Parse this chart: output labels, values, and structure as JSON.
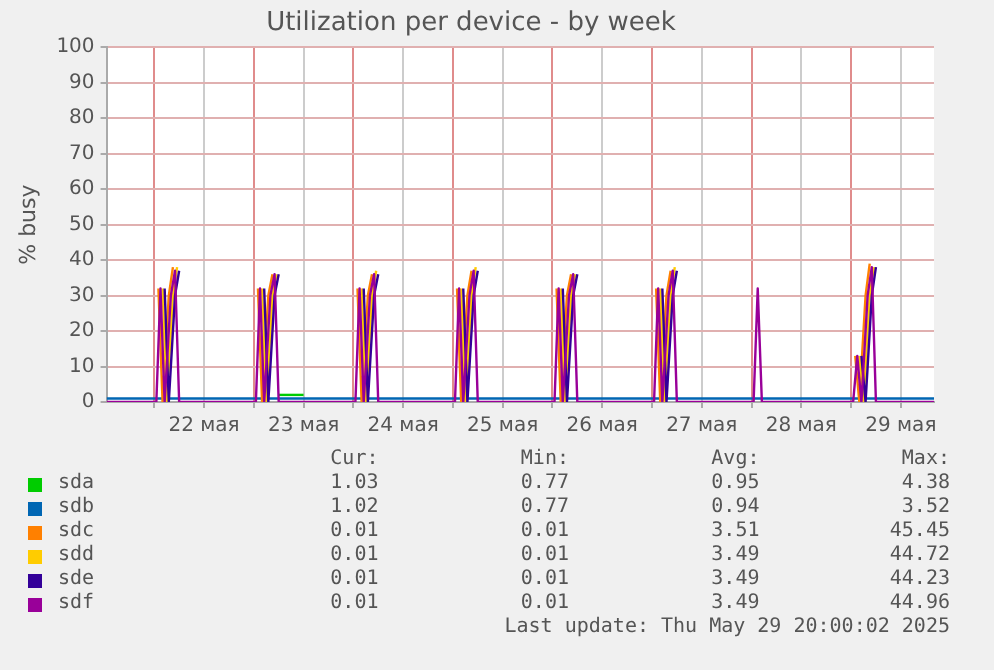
{
  "chart_data": {
    "type": "line",
    "title": "Utilization per device - by week",
    "ylabel": "% busy",
    "x": [
      "2025-05-21T12:30",
      "2025-05-22T00:30",
      "2025-05-22T01:30",
      "2025-05-22T02:30",
      "2025-05-22T04:00",
      "2025-05-22T05:00",
      "2025-05-22T06:00",
      "2025-05-23T00:30",
      "2025-05-23T01:30",
      "2025-05-23T02:30",
      "2025-05-23T04:00",
      "2025-05-23T05:00",
      "2025-05-23T06:00",
      "2025-05-24T00:30",
      "2025-05-24T01:30",
      "2025-05-24T02:30",
      "2025-05-24T04:00",
      "2025-05-24T05:00",
      "2025-05-24T06:00",
      "2025-05-25T00:30",
      "2025-05-25T01:30",
      "2025-05-25T02:30",
      "2025-05-25T04:00",
      "2025-05-25T05:00",
      "2025-05-25T06:00",
      "2025-05-26T00:30",
      "2025-05-26T01:30",
      "2025-05-26T02:30",
      "2025-05-26T04:00",
      "2025-05-26T05:00",
      "2025-05-26T06:00",
      "2025-05-27T00:30",
      "2025-05-27T01:30",
      "2025-05-27T02:30",
      "2025-05-27T04:00",
      "2025-05-27T05:00",
      "2025-05-27T06:00",
      "2025-05-28T00:30",
      "2025-05-28T01:30",
      "2025-05-28T02:30",
      "2025-05-28T04:00",
      "2025-05-28T05:00",
      "2025-05-28T06:00",
      "2025-05-29T00:30",
      "2025-05-29T01:30",
      "2025-05-29T02:30",
      "2025-05-29T04:00",
      "2025-05-29T05:00",
      "2025-05-29T06:00",
      "2025-05-29T20:00"
    ],
    "series": [
      {
        "name": "sda",
        "color": "#00cc00",
        "x": [
          "2025-05-23T06:00",
          "2025-05-23T08:00",
          "2025-05-23T10:00",
          "2025-05-23T12:00"
        ],
        "values": [
          2,
          2,
          2,
          2
        ]
      },
      {
        "name": "sdb",
        "color": "#0066b3",
        "values": [
          1,
          1,
          1,
          1,
          1,
          1,
          1,
          1,
          1,
          1,
          1,
          1,
          1,
          1,
          1,
          1,
          1,
          1,
          1,
          1,
          1,
          1,
          1,
          1,
          1,
          1,
          1,
          1,
          1,
          1,
          1,
          1,
          1,
          1,
          1,
          1,
          1,
          1,
          1,
          1,
          1,
          1,
          1,
          1,
          1,
          1,
          1,
          1,
          1,
          1
        ]
      },
      {
        "name": "sdc",
        "color": "#ff8000",
        "x": [
          "2025-05-22T01:00",
          "2025-05-22T02:00",
          "2025-05-22T03:30",
          "2025-05-22T04:30",
          "2025-05-22T12:00",
          "2025-05-23T01:00",
          "2025-05-23T02:00",
          "2025-05-23T03:30",
          "2025-05-23T04:30",
          "2025-05-23T12:00",
          "2025-05-24T01:00",
          "2025-05-24T02:00",
          "2025-05-24T03:30",
          "2025-05-24T04:30",
          "2025-05-24T12:00",
          "2025-05-25T01:00",
          "2025-05-25T02:00",
          "2025-05-25T03:30",
          "2025-05-25T04:30",
          "2025-05-25T12:00",
          "2025-05-26T01:00",
          "2025-05-26T02:00",
          "2025-05-26T03:30",
          "2025-05-26T04:30",
          "2025-05-26T12:00",
          "2025-05-27T01:00",
          "2025-05-27T02:00",
          "2025-05-27T03:30",
          "2025-05-27T04:30",
          "2025-05-27T12:00",
          "2025-05-29T01:00",
          "2025-05-29T02:00",
          "2025-05-29T03:30",
          "2025-05-29T04:30"
        ],
        "values": [
          32,
          0,
          30,
          38,
          null,
          32,
          0,
          30,
          36,
          null,
          32,
          0,
          30,
          36,
          null,
          32,
          0,
          30,
          37,
          null,
          32,
          0,
          30,
          36,
          null,
          32,
          0,
          30,
          37,
          null,
          13,
          0,
          30,
          39
        ]
      },
      {
        "name": "sdd",
        "color": "#ffcc00",
        "x": [
          "2025-05-22T02:00",
          "2025-05-22T03:00",
          "2025-05-22T04:30",
          "2025-05-22T05:30",
          "2025-05-22T12:00",
          "2025-05-23T02:00",
          "2025-05-23T03:00",
          "2025-05-23T04:30",
          "2025-05-23T05:30",
          "2025-05-23T12:00",
          "2025-05-24T02:00",
          "2025-05-24T03:00",
          "2025-05-24T04:30",
          "2025-05-24T05:30",
          "2025-05-24T12:00",
          "2025-05-25T02:00",
          "2025-05-25T03:00",
          "2025-05-25T04:30",
          "2025-05-25T05:30",
          "2025-05-25T12:00",
          "2025-05-26T02:00",
          "2025-05-26T03:00",
          "2025-05-26T04:30",
          "2025-05-26T05:30",
          "2025-05-26T12:00",
          "2025-05-27T02:00",
          "2025-05-27T03:00",
          "2025-05-27T04:30",
          "2025-05-27T05:30",
          "2025-05-27T12:00",
          "2025-05-29T02:00",
          "2025-05-29T03:00",
          "2025-05-29T04:30",
          "2025-05-29T05:30"
        ],
        "values": [
          32,
          0,
          30,
          38,
          null,
          32,
          0,
          30,
          36,
          null,
          32,
          0,
          30,
          37,
          null,
          32,
          0,
          30,
          38,
          null,
          32,
          0,
          30,
          36,
          null,
          32,
          0,
          30,
          38,
          null,
          13,
          0,
          30,
          38
        ]
      },
      {
        "name": "sde",
        "color": "#330099",
        "x": [
          "2025-05-22T02:30",
          "2025-05-22T03:30",
          "2025-05-22T05:00",
          "2025-05-22T06:00",
          "2025-05-22T12:00",
          "2025-05-23T02:30",
          "2025-05-23T03:30",
          "2025-05-23T05:00",
          "2025-05-23T06:00",
          "2025-05-23T12:00",
          "2025-05-24T02:30",
          "2025-05-24T03:30",
          "2025-05-24T05:00",
          "2025-05-24T06:00",
          "2025-05-24T12:00",
          "2025-05-25T02:30",
          "2025-05-25T03:30",
          "2025-05-25T05:00",
          "2025-05-25T06:00",
          "2025-05-25T12:00",
          "2025-05-26T02:30",
          "2025-05-26T03:30",
          "2025-05-26T05:00",
          "2025-05-26T06:00",
          "2025-05-26T12:00",
          "2025-05-27T02:30",
          "2025-05-27T03:30",
          "2025-05-27T05:00",
          "2025-05-27T06:00",
          "2025-05-27T12:00",
          "2025-05-29T02:30",
          "2025-05-29T03:30",
          "2025-05-29T05:00",
          "2025-05-29T06:00"
        ],
        "values": [
          32,
          0,
          30,
          37,
          null,
          32,
          0,
          30,
          36,
          null,
          32,
          0,
          30,
          36,
          null,
          32,
          0,
          30,
          37,
          null,
          32,
          0,
          30,
          36,
          null,
          32,
          0,
          30,
          37,
          null,
          13,
          0,
          30,
          38
        ]
      },
      {
        "name": "sdf",
        "color": "#990099",
        "values": [
          0,
          0,
          32,
          0,
          30,
          37,
          0,
          0,
          32,
          0,
          30,
          36,
          0,
          0,
          32,
          0,
          30,
          36,
          0,
          0,
          32,
          0,
          30,
          37,
          0,
          0,
          32,
          0,
          30,
          36,
          0,
          0,
          32,
          0,
          30,
          37,
          0,
          0,
          32,
          0,
          0,
          0,
          0,
          0,
          13,
          0,
          30,
          38,
          0,
          0
        ]
      }
    ],
    "xlim": [
      "2025-05-21T12:30",
      "2025-05-29T20:00"
    ],
    "xticks": [
      {
        "value": "2025-05-22T00:00",
        "label": null
      },
      {
        "value": "2025-05-22T12:00",
        "label": "22 мая"
      },
      {
        "value": "2025-05-23T00:00",
        "label": null
      },
      {
        "value": "2025-05-23T12:00",
        "label": "23 мая"
      },
      {
        "value": "2025-05-24T00:00",
        "label": null
      },
      {
        "value": "2025-05-24T12:00",
        "label": "24 мая"
      },
      {
        "value": "2025-05-25T00:00",
        "label": null
      },
      {
        "value": "2025-05-25T12:00",
        "label": "25 мая"
      },
      {
        "value": "2025-05-26T00:00",
        "label": null
      },
      {
        "value": "2025-05-26T12:00",
        "label": "26 мая"
      },
      {
        "value": "2025-05-27T00:00",
        "label": null
      },
      {
        "value": "2025-05-27T12:00",
        "label": "27 мая"
      },
      {
        "value": "2025-05-28T00:00",
        "label": null
      },
      {
        "value": "2025-05-28T12:00",
        "label": "28 мая"
      },
      {
        "value": "2025-05-29T00:00",
        "label": null
      },
      {
        "value": "2025-05-29T12:00",
        "label": "29 мая"
      }
    ],
    "ylim": [
      0,
      100
    ],
    "yticks": [
      0,
      10,
      20,
      30,
      40,
      50,
      60,
      70,
      80,
      90,
      100
    ],
    "grid": true,
    "legend": "bottom",
    "marker": "none",
    "line_style": "solid",
    "annotations": [
      "Cur:",
      "Min:",
      "Avg:",
      "Max:",
      "1.03",
      "0.77",
      "0.95",
      "4.38",
      "1.02",
      "0.77",
      "0.94",
      "3.52",
      "0.01",
      "0.01",
      "3.51",
      "45.45",
      "0.01",
      "0.01",
      "3.49",
      "44.72",
      "0.01",
      "0.01",
      "3.49",
      "44.23",
      "0.01",
      "0.01",
      "3.49",
      "44.96",
      "Last update: Thu May 29 20:00:02 2025"
    ]
  }
}
